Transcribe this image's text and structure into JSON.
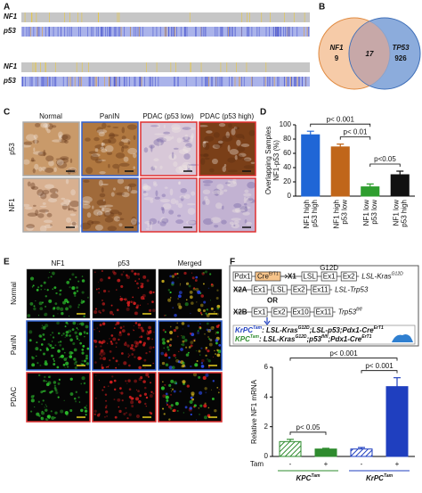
{
  "panel_labels": [
    "A",
    "B",
    "C",
    "D",
    "E",
    "F"
  ],
  "panel_a": {
    "rows": [
      "NF1",
      "p53",
      "NF1",
      "p53"
    ]
  },
  "panel_b": {
    "left": {
      "name": "NF1",
      "count": 9
    },
    "overlap": 17,
    "right": {
      "name": "TP53",
      "count": 926
    }
  },
  "panel_c": {
    "columns": [
      "Normal",
      "PanIN",
      "PDAC (p53 low)",
      "PDAC (p53 high)"
    ],
    "rows": [
      "p53",
      "NF1"
    ]
  },
  "panel_e": {
    "columns": [
      "NF1",
      "p53",
      "Merged"
    ],
    "rows": [
      "Normal",
      "PanIN",
      "PDAC"
    ]
  },
  "panel_f": {
    "mutation": "G12D",
    "lines": [
      {
        "pre": [
          {
            "t": "Pdx1"
          },
          {
            "t": "Cre",
            "s": "ErT1"
          }
        ],
        "label": "X1",
        "boxes": [
          {
            "t": "LSL"
          },
          {
            "t": "Ex1"
          },
          {
            "t": "Ex2"
          }
        ],
        "allele": [
          {
            "t": "LSL-Kras",
            "s": "G12D"
          }
        ]
      },
      {
        "label": "X2A",
        "boxes": [
          {
            "t": "Ex1"
          },
          {
            "t": "LSL"
          },
          {
            "t": "Ex2"
          },
          {
            "t": "Ex11"
          }
        ],
        "allele": [
          {
            "t": "LSL-Trp53"
          }
        ]
      },
      {
        "label": "X2B",
        "boxes": [
          {
            "t": "Ex1"
          },
          {
            "t": "Ex2"
          },
          {
            "t": "Ex10"
          },
          {
            "t": "Ex11"
          }
        ],
        "allele": [
          {
            "t": "Trp53",
            "s": "fl/fl"
          }
        ]
      }
    ],
    "or": "OR",
    "genotypes": [
      {
        "color": "#1f3fbf",
        "segments": [
          {
            "t": "KrPC",
            "s": "Tam"
          },
          {
            "t": ": LSL-Kras",
            "s": "G12D"
          },
          {
            "t": ";LSL-p53;Pdx1-Cre",
            "s": "ErT1"
          }
        ]
      },
      {
        "color": "#2e8b2e",
        "segments": [
          {
            "t": "KPC",
            "s": "Tam"
          },
          {
            "t": ": LSL-Kras",
            "s": "G12D"
          },
          {
            "t": ";p53",
            "s": "fl/fl"
          },
          {
            "t": ";Pdx1-Cre",
            "s": "ErT1"
          }
        ]
      }
    ]
  },
  "chart_data": [
    {
      "type": "bar",
      "ylabel": [
        "Overlapping Samples",
        "NF1-p53 (%)"
      ],
      "categories": [
        [
          "NF1 high",
          "p53 high"
        ],
        [
          "NF1 high",
          "p53 low"
        ],
        [
          "NF1 low",
          "p53 low"
        ],
        [
          "NF1 low",
          "p53 high"
        ]
      ],
      "values": [
        86,
        69,
        13,
        30
      ],
      "errors": [
        5,
        4,
        4,
        5
      ],
      "colors": [
        "#1f66d6",
        "#c0661a",
        "#2e9e2e",
        "#111111"
      ],
      "ylim": [
        0,
        100
      ],
      "yticks": [
        0,
        20,
        40,
        60,
        80,
        100
      ],
      "annotations": [
        {
          "text": "p< 0.001",
          "between": [
            0,
            2
          ]
        },
        {
          "text": "p< 0.01",
          "between": [
            1,
            2
          ]
        },
        {
          "text": "p<0.05",
          "between": [
            2,
            3
          ]
        }
      ]
    },
    {
      "type": "bar",
      "ylabel": "Relative NF1 mRNA",
      "categories": [
        "-",
        "+",
        "-",
        "+"
      ],
      "row_label": "Tam",
      "groups": [
        {
          "t": "KPC",
          "s": "Tam",
          "color": "#2e8b2e"
        },
        {
          "t": "KrPC",
          "s": "Tam",
          "color": "#1f3fbf"
        }
      ],
      "values": [
        1,
        0.5,
        0.5,
        4.7
      ],
      "errors": [
        0.15,
        0.05,
        0.1,
        0.6
      ],
      "colors": [
        "#2e8b2e",
        "#2e8b2e",
        "#1f3fbf",
        "#1f3fbf"
      ],
      "hatched": [
        true,
        false,
        true,
        false
      ],
      "ylim": [
        0,
        6
      ],
      "yticks": [
        0,
        2,
        4,
        6
      ],
      "annotations": [
        {
          "text": "p< 0.05",
          "between": [
            0,
            1
          ]
        },
        {
          "text": "p< 0.001",
          "between": [
            2,
            3
          ]
        },
        {
          "text": "p< 0.001",
          "between": [
            0,
            3
          ]
        }
      ]
    }
  ]
}
